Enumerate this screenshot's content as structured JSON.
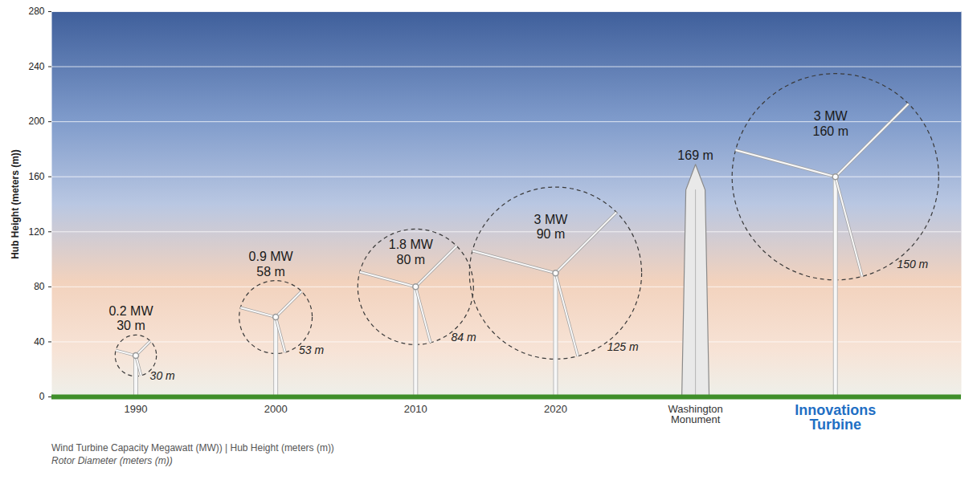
{
  "chart_data": {
    "type": "pictograph",
    "y_label": "Hub Height (meters (m))",
    "categories": [
      "1990",
      "2000",
      "2010",
      "2020",
      "Washington Monument",
      "Innovations Turbine"
    ],
    "capacity_mw": [
      0.2,
      0.9,
      1.8,
      3,
      null,
      3
    ],
    "capacity_labels": [
      "0.2 MW",
      "0.9 MW",
      "1.8 MW",
      "3 MW",
      null,
      "3 MW"
    ],
    "hub_height": [
      30,
      58,
      80,
      90,
      169,
      160
    ],
    "hub_height_labels": [
      "30 m",
      "58 m",
      "80 m",
      "90 m",
      "169 m",
      "160 m"
    ],
    "rotor_diameter": [
      30,
      53,
      84,
      125,
      null,
      150
    ],
    "rotor_diameter_labels": [
      "30 m",
      "53 m",
      "84 m",
      "125 m",
      null,
      "150 m"
    ],
    "ylim": [
      0,
      280
    ],
    "yticks": [
      0,
      40,
      80,
      120,
      160,
      200,
      240,
      280
    ],
    "grid": true,
    "data_labels": true,
    "caption": [
      "Wind Turbine Capacity Megawatt (MW)) | Hub Height (meters (m))",
      "Rotor Diameter (meters (m))"
    ]
  }
}
